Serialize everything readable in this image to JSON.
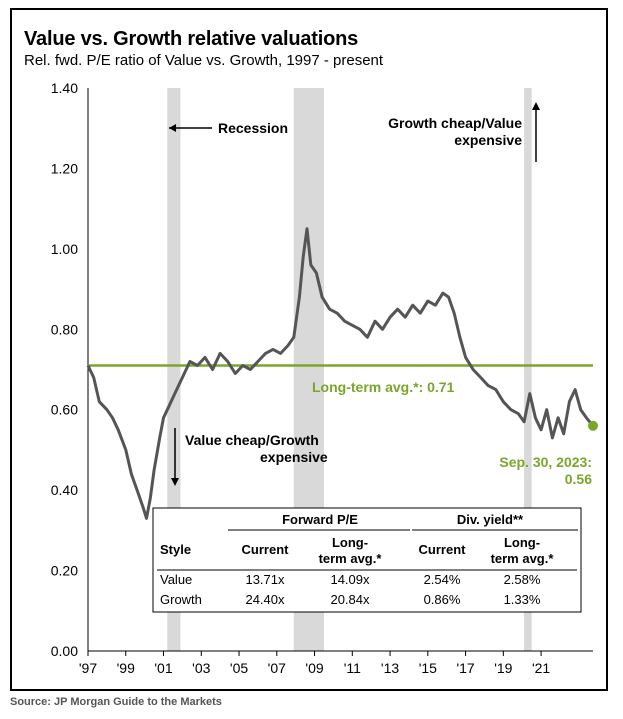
{
  "title": "Value vs. Growth relative valuations",
  "subtitle": "Rel. fwd. P/E ratio of Value vs. Growth, 1997 - present",
  "source": "Source: JP Morgan Guide to the Markets",
  "colors": {
    "line": "#555555",
    "average": "#7aa62b",
    "recession": "#d9d9d9",
    "endpoint": "#7aa62b"
  },
  "annotations": {
    "recession": "Recession",
    "growth_cheap_line1": "Growth cheap/Value",
    "growth_cheap_line2": "expensive",
    "value_cheap_line1": "Value cheap/Growth",
    "value_cheap_line2": "expensive",
    "avg_label": "Long-term avg.*: 0.71",
    "end_label_line1": "Sep. 30, 2023:",
    "end_label_line2": "0.56"
  },
  "chart_data": {
    "type": "line",
    "title": "Value vs. Growth relative valuations",
    "subtitle": "Rel. fwd. P/E ratio of Value vs. Growth, 1997 - present",
    "xlabel": "",
    "ylabel": "",
    "xlim": [
      1997,
      2023.75
    ],
    "ylim": [
      0,
      1.4
    ],
    "y_ticks": [
      "0.00",
      "0.20",
      "0.40",
      "0.60",
      "0.80",
      "1.00",
      "1.20",
      "1.40"
    ],
    "y_tick_values": [
      0,
      0.2,
      0.4,
      0.6,
      0.8,
      1.0,
      1.2,
      1.4
    ],
    "x_ticks": [
      "'97",
      "'99",
      "'01",
      "'03",
      "'05",
      "'07",
      "'09",
      "'11",
      "'13",
      "'15",
      "'17",
      "'19",
      "'21"
    ],
    "x_tick_values": [
      1997,
      1999,
      2001,
      2003,
      2005,
      2007,
      2009,
      2011,
      2013,
      2015,
      2017,
      2019,
      2021
    ],
    "grid": false,
    "long_term_average": 0.71,
    "recessions": [
      [
        2001.2,
        2001.9
      ],
      [
        2007.9,
        2009.5
      ],
      [
        2020.1,
        2020.5
      ]
    ],
    "end_point": {
      "x": 2023.75,
      "y": 0.56
    },
    "series": [
      {
        "x": [
          1997.0,
          1997.3,
          1997.6,
          1998.0,
          1998.3,
          1998.6,
          1999.0,
          1999.3,
          1999.6,
          1999.9,
          2000.1,
          2000.3,
          2000.5,
          2000.8,
          2001.0,
          2001.3,
          2001.6,
          2002.0,
          2002.4,
          2002.8,
          2003.2,
          2003.6,
          2004.0,
          2004.4,
          2004.8,
          2005.2,
          2005.6,
          2006.0,
          2006.4,
          2006.8,
          2007.2,
          2007.6,
          2007.9,
          2008.2,
          2008.4,
          2008.6,
          2008.8,
          2009.1,
          2009.4,
          2009.8,
          2010.2,
          2010.6,
          2011.0,
          2011.4,
          2011.8,
          2012.2,
          2012.6,
          2013.0,
          2013.4,
          2013.8,
          2014.2,
          2014.6,
          2015.0,
          2015.4,
          2015.8,
          2016.1,
          2016.4,
          2016.7,
          2017.0,
          2017.4,
          2017.8,
          2018.2,
          2018.6,
          2019.0,
          2019.4,
          2019.8,
          2020.1,
          2020.4,
          2020.7,
          2021.0,
          2021.3,
          2021.6,
          2021.9,
          2022.2,
          2022.5,
          2022.8,
          2023.1,
          2023.4,
          2023.75
        ],
        "values": [
          0.71,
          0.68,
          0.62,
          0.6,
          0.58,
          0.55,
          0.5,
          0.44,
          0.4,
          0.36,
          0.33,
          0.38,
          0.45,
          0.53,
          0.58,
          0.61,
          0.64,
          0.68,
          0.72,
          0.71,
          0.73,
          0.7,
          0.74,
          0.72,
          0.69,
          0.71,
          0.7,
          0.72,
          0.74,
          0.75,
          0.74,
          0.76,
          0.78,
          0.88,
          0.98,
          1.05,
          0.96,
          0.94,
          0.88,
          0.85,
          0.84,
          0.82,
          0.81,
          0.8,
          0.78,
          0.82,
          0.8,
          0.83,
          0.85,
          0.83,
          0.86,
          0.84,
          0.87,
          0.86,
          0.89,
          0.88,
          0.84,
          0.78,
          0.73,
          0.7,
          0.68,
          0.66,
          0.65,
          0.62,
          0.6,
          0.59,
          0.57,
          0.64,
          0.58,
          0.55,
          0.6,
          0.53,
          0.58,
          0.54,
          0.62,
          0.65,
          0.6,
          0.58,
          0.56
        ]
      }
    ],
    "table": {
      "group_headers": [
        "Forward P/E",
        "Div. yield**"
      ],
      "columns": [
        "Style",
        "Current",
        "Long-term avg.*",
        "Current",
        "Long-term avg.*"
      ],
      "col_line1": [
        "Style",
        "Current",
        "Long-",
        "Current",
        "Long-"
      ],
      "col_line2": [
        "",
        "",
        "term avg.*",
        "",
        "term avg.*"
      ],
      "rows": [
        [
          "Value",
          "13.71x",
          "14.09x",
          "2.54%",
          "2.58%"
        ],
        [
          "Growth",
          "24.40x",
          "20.84x",
          "0.86%",
          "1.33%"
        ]
      ]
    }
  }
}
